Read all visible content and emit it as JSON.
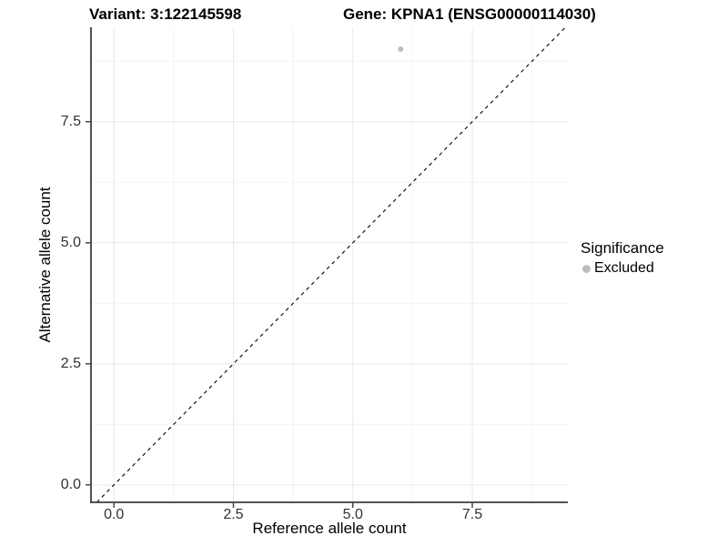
{
  "figure": {
    "titles": {
      "left": "Variant: 3:122145598",
      "right": "Gene: KPNA1 (ENSG00000114030)"
    }
  },
  "legend": {
    "title": "Significance",
    "items": [
      {
        "label": "Excluded",
        "color": "#bdbdbd"
      }
    ]
  },
  "chart_data": {
    "type": "scatter",
    "title": "Variant: 3:122145598 / Gene: KPNA1 (ENSG00000114030)",
    "xlabel": "Reference allele count",
    "ylabel": "Alternative allele count",
    "x_ticks": [
      0,
      2.5,
      5,
      7.5
    ],
    "y_ticks": [
      0,
      2.5,
      5,
      7.5
    ],
    "x_tick_labels": [
      "0.0",
      "2.5",
      "5.0",
      "7.5"
    ],
    "y_tick_labels": [
      "0.0",
      "2.5",
      "5.0",
      "7.5"
    ],
    "x_minor_ticks": [
      1.25,
      3.75,
      6.25,
      8.75
    ],
    "y_minor_ticks": [
      1.25,
      3.75,
      6.25,
      8.75
    ],
    "xlim": [
      -0.48,
      9.5
    ],
    "ylim": [
      -0.36,
      9.45
    ],
    "grid": true,
    "legend_position": "right",
    "series": [
      {
        "name": "Excluded",
        "color": "#bdbdbd",
        "points": [
          {
            "x": 6,
            "y": 9
          }
        ]
      }
    ],
    "reference_line": {
      "type": "identity",
      "slope": 1,
      "intercept": 0,
      "line_style": "dashed",
      "color": "#000000"
    },
    "colors": {
      "background": "#ffffff",
      "axis_line": "#3c3c3c",
      "tick_mark": "#3c3c3c",
      "tick_text": "#333333",
      "grid_major": "#e9e9e9",
      "grid_minor": "#f4f4f4"
    }
  }
}
